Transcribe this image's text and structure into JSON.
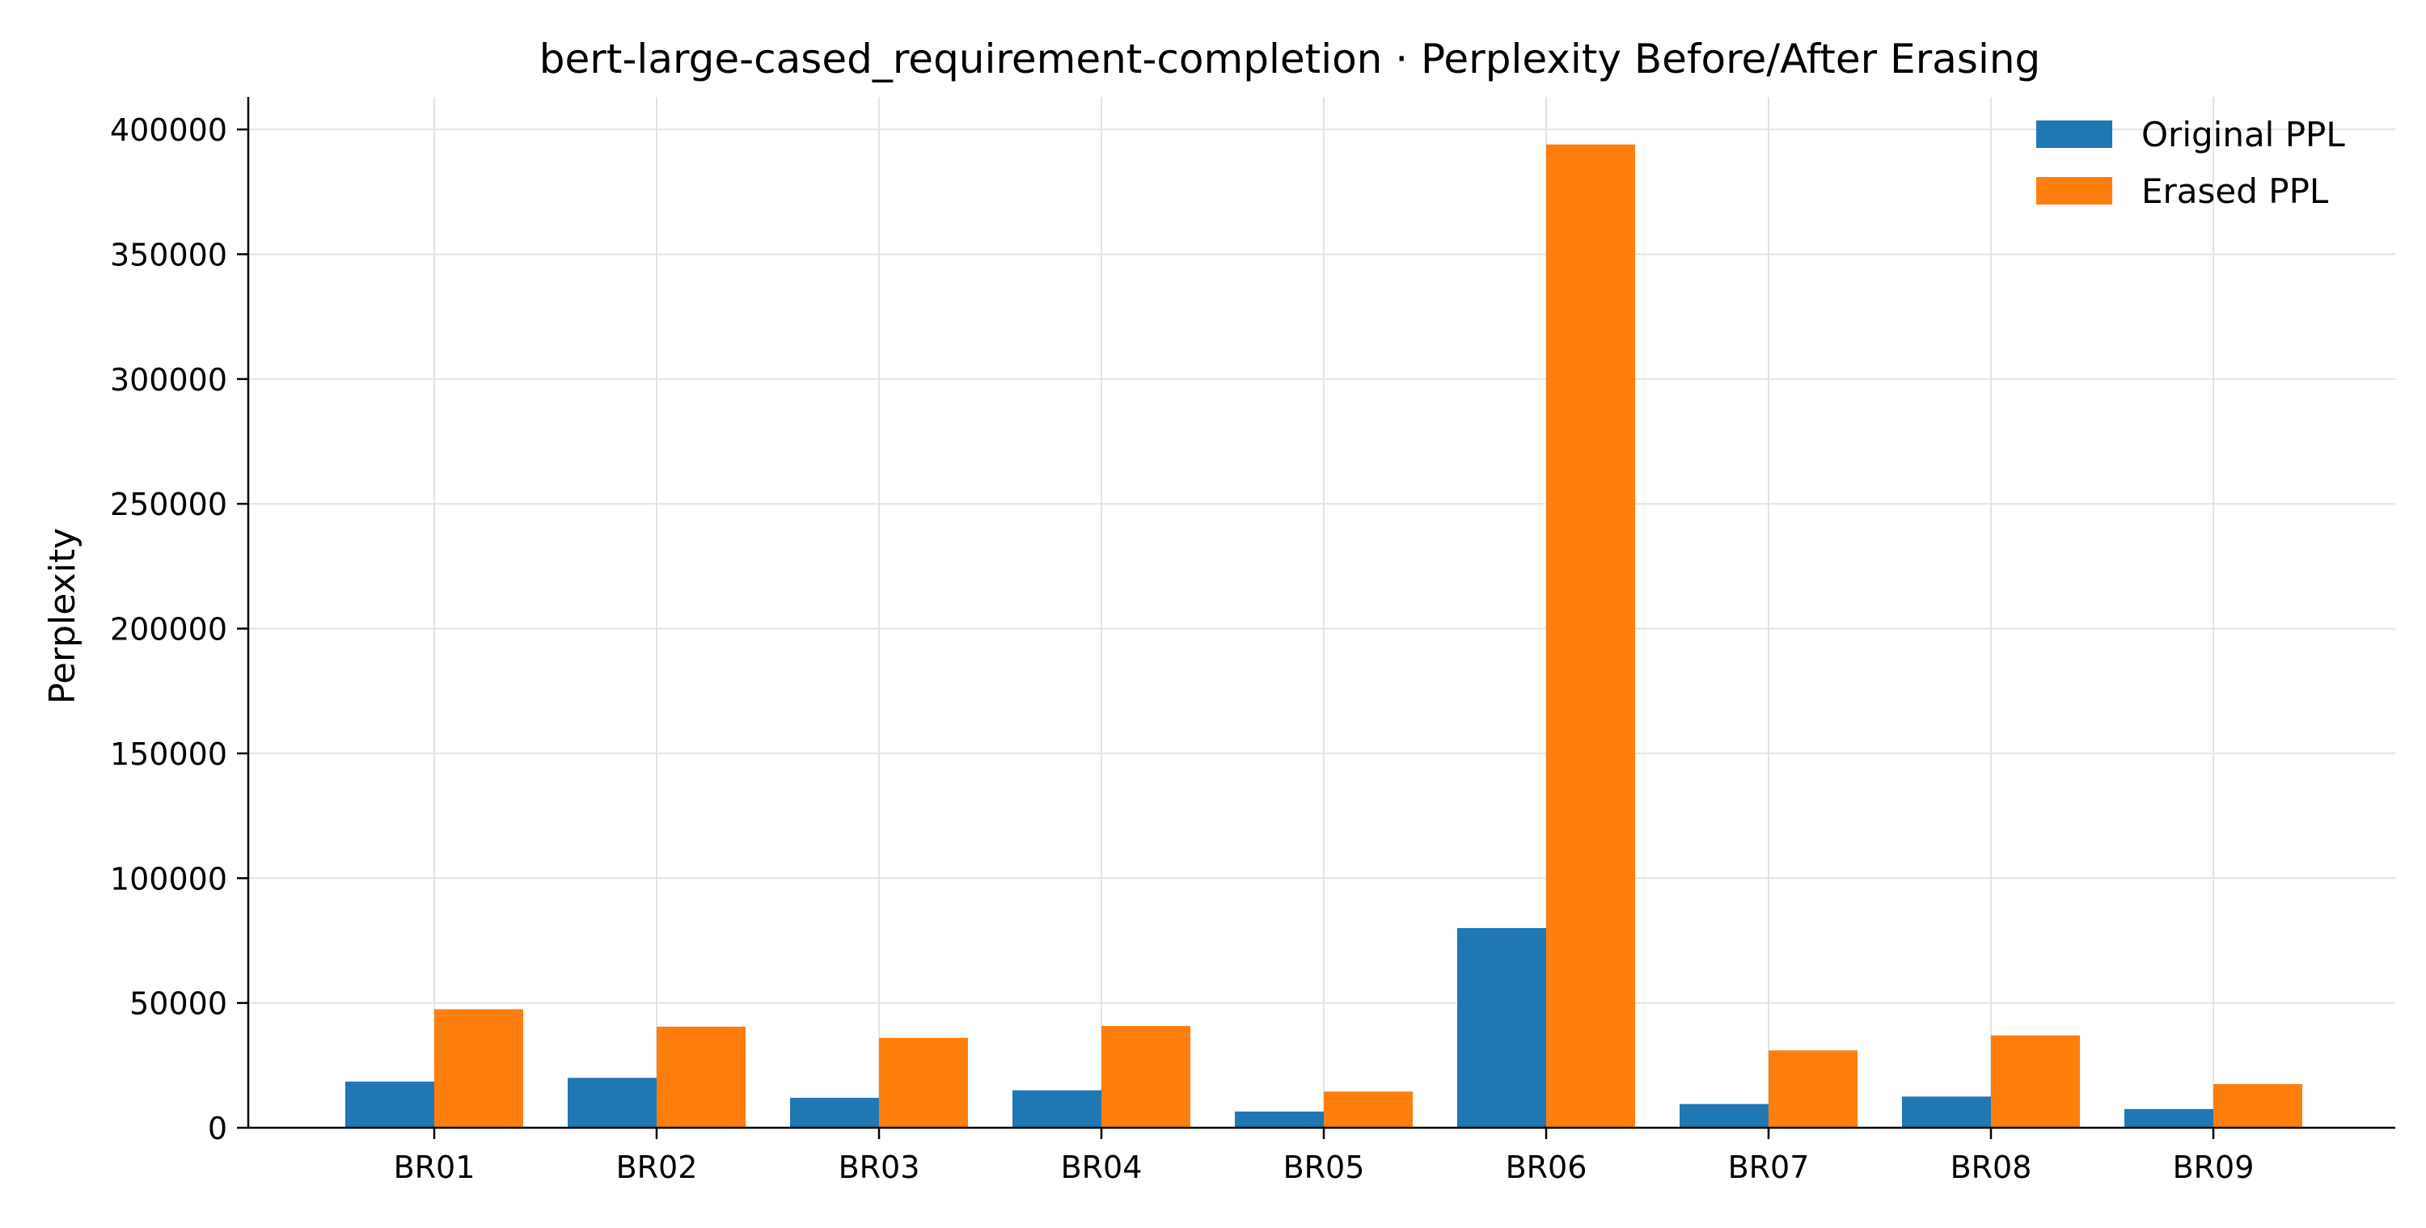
{
  "chart_data": {
    "type": "bar",
    "title": "bert-large-cased_requirement-completion · Perplexity Before/After Erasing",
    "xlabel": "",
    "ylabel": "Perplexity",
    "categories": [
      "BR01",
      "BR02",
      "BR03",
      "BR04",
      "BR05",
      "BR06",
      "BR07",
      "BR08",
      "BR09"
    ],
    "series": [
      {
        "name": "Original PPL",
        "color": "#1f77b4",
        "values": [
          18500,
          20000,
          12000,
          15000,
          6500,
          80000,
          9500,
          12500,
          7500
        ]
      },
      {
        "name": "Erased PPL",
        "color": "#ff7f0e",
        "values": [
          47500,
          40500,
          36000,
          40800,
          14500,
          394000,
          31000,
          37000,
          17500
        ]
      }
    ],
    "ylim": [
      0,
      413000
    ],
    "yticks": [
      0,
      50000,
      100000,
      150000,
      200000,
      250000,
      300000,
      350000,
      400000
    ],
    "ytick_labels": [
      "0",
      "50000",
      "100000",
      "150000",
      "200000",
      "250000",
      "300000",
      "350000",
      "400000"
    ],
    "grid": true,
    "legend_position": "top-right"
  }
}
